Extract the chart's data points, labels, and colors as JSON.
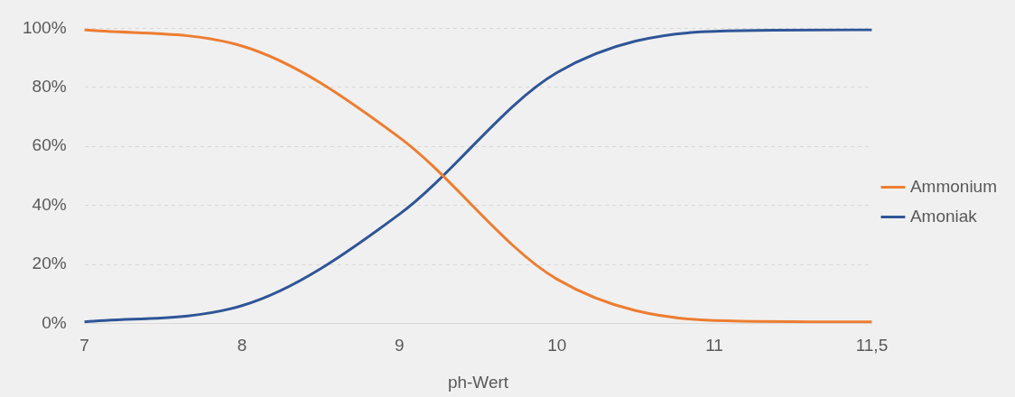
{
  "chart_data": {
    "type": "line",
    "xlabel": "ph-Wert",
    "categories": [
      "7",
      "8",
      "9",
      "10",
      "11",
      "11,5"
    ],
    "series": [
      {
        "name": "Ammonium",
        "color": "#ed7d31",
        "values": [
          99.5,
          94,
          63,
          15,
          1,
          0.5
        ]
      },
      {
        "name": "Amoniak",
        "color": "#2f5597",
        "values": [
          0.5,
          6,
          37,
          85,
          99,
          99.5
        ]
      }
    ],
    "ylim": [
      0,
      100
    ],
    "yticks": [
      {
        "value": 0,
        "label": "0%"
      },
      {
        "value": 20,
        "label": "20%"
      },
      {
        "value": 40,
        "label": "40%"
      },
      {
        "value": 60,
        "label": "60%"
      },
      {
        "value": 80,
        "label": "80%"
      },
      {
        "value": 100,
        "label": "100%"
      }
    ],
    "grid": "y",
    "legend": "right",
    "marker": "none",
    "line_style": "solid"
  }
}
